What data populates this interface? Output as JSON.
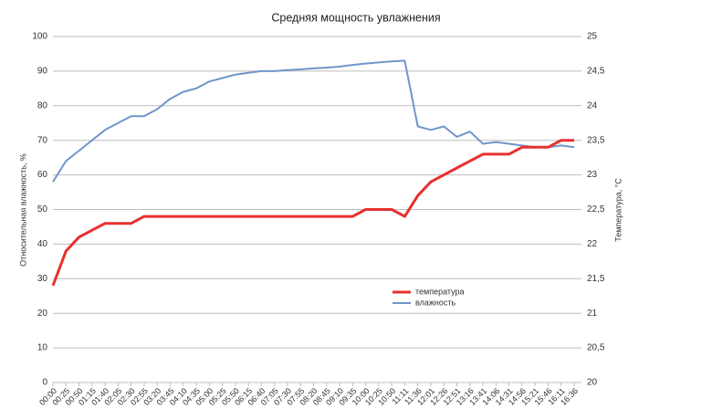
{
  "chart_data": {
    "type": "line",
    "title": "Средняя мощность увлажнения",
    "y_label": "Относительная влажность, %",
    "y2_label": "Температура, °С",
    "categories": [
      "00:00",
      "00:25",
      "00:50",
      "01:15",
      "01:40",
      "02:05",
      "02:30",
      "02:55",
      "03:20",
      "03:45",
      "04:10",
      "04:35",
      "05:00",
      "05:25",
      "05:50",
      "06:15",
      "06:40",
      "07:05",
      "07:30",
      "07:55",
      "08:20",
      "08:45",
      "09:10",
      "09:35",
      "10:00",
      "10:25",
      "10:50",
      "11:11",
      "11:36",
      "12:01",
      "12:26",
      "12:51",
      "13:16",
      "13:41",
      "14:06",
      "14:31",
      "14:56",
      "15:21",
      "15:46",
      "16:11",
      "16:36"
    ],
    "series": [
      {
        "name": "температура",
        "color": "#e8302e",
        "axis": "y2",
        "values": [
          21.4,
          21.9,
          22.1,
          22.2,
          22.3,
          22.3,
          22.3,
          22.4,
          22.4,
          22.4,
          22.4,
          22.4,
          22.4,
          22.4,
          22.4,
          22.4,
          22.4,
          22.4,
          22.4,
          22.4,
          22.4,
          22.4,
          22.4,
          22.4,
          22.5,
          22.5,
          22.5,
          22.4,
          22.7,
          22.9,
          23.0,
          23.1,
          23.2,
          23.3,
          23.3,
          23.3,
          23.4,
          23.4,
          23.4,
          23.5,
          23.5
        ]
      },
      {
        "name": "влажность",
        "color": "#6f96c9",
        "values": [
          58,
          64,
          67,
          70,
          73,
          75,
          77,
          77,
          79,
          82,
          84,
          85,
          87,
          88,
          89,
          89.5,
          90,
          90,
          90.3,
          90.5,
          90.8,
          91,
          91.3,
          91.8,
          92.2,
          92.5,
          92.8,
          93,
          74,
          73,
          74,
          71,
          72.5,
          69,
          69.5,
          69,
          68.5,
          68,
          68,
          68.5,
          68
        ]
      }
    ],
    "ylim": [
      0,
      100
    ],
    "yticks": [
      0,
      10,
      20,
      30,
      40,
      50,
      60,
      70,
      80,
      90,
      100
    ],
    "y2lim": [
      20,
      25
    ],
    "y2ticks": [
      20,
      {
        "value": 20.5,
        "label": "20,5"
      },
      21,
      {
        "value": 21.5,
        "label": "21,5"
      },
      22,
      {
        "value": 22.5,
        "label": "22,5"
      },
      23,
      {
        "value": 23.5,
        "label": "23,5"
      },
      24,
      {
        "value": 24.5,
        "label": "24,5"
      },
      25
    ],
    "grid": true,
    "legend": "center"
  }
}
